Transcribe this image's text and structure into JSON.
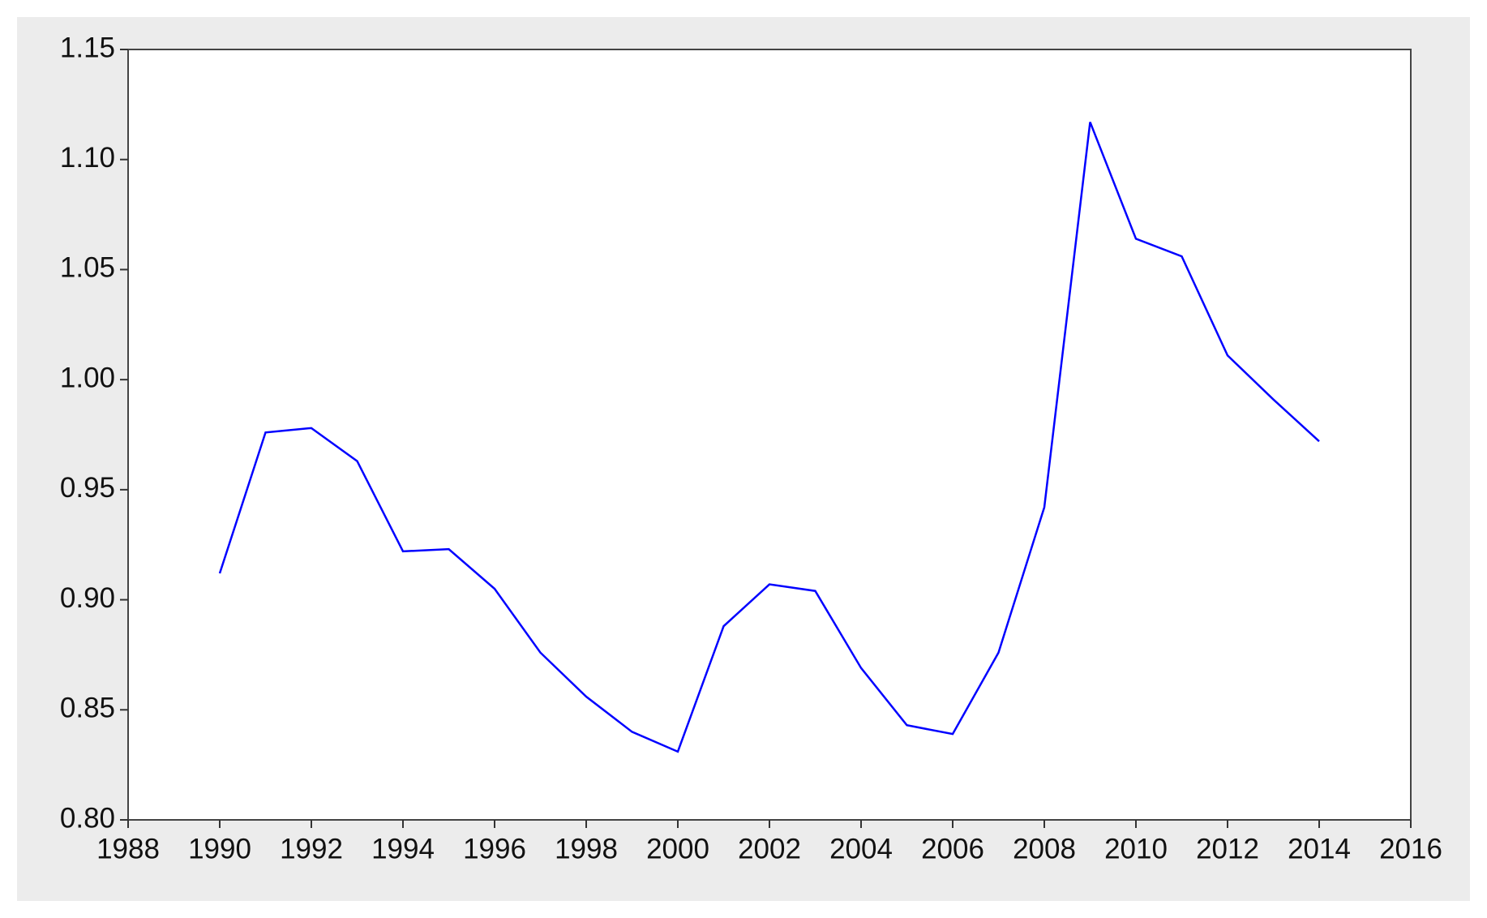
{
  "chart_data": {
    "type": "line",
    "x": [
      1990,
      1991,
      1992,
      1993,
      1994,
      1995,
      1996,
      1997,
      1998,
      1999,
      2000,
      2001,
      2002,
      2003,
      2004,
      2005,
      2006,
      2007,
      2008,
      2009,
      2010,
      2011,
      2012,
      2013,
      2014
    ],
    "series": [
      {
        "color": "#0000ff",
        "values": [
          0.912,
          0.976,
          0.978,
          0.963,
          0.922,
          0.923,
          0.905,
          0.876,
          0.856,
          0.84,
          0.831,
          0.888,
          0.907,
          0.904,
          0.869,
          0.843,
          0.839,
          0.876,
          0.942,
          1.117,
          1.064,
          1.056,
          1.011,
          0.991,
          0.972
        ]
      }
    ],
    "xlim": [
      1988,
      2016
    ],
    "xticks": [
      1988,
      1990,
      1992,
      1994,
      1996,
      1998,
      2000,
      2002,
      2004,
      2006,
      2008,
      2010,
      2012,
      2014,
      2016
    ],
    "ylim": [
      0.8,
      1.15
    ],
    "yticks": [
      {
        "value": 0.8,
        "label": "0.80"
      },
      {
        "value": 0.85,
        "label": "0.85"
      },
      {
        "value": 0.9,
        "label": "0.90"
      },
      {
        "value": 0.95,
        "label": "0.95"
      },
      {
        "value": 1.0,
        "label": "1.00"
      },
      {
        "value": 1.05,
        "label": "1.05"
      },
      {
        "value": 1.1,
        "label": "1.10"
      },
      {
        "value": 1.15,
        "label": "1.15"
      }
    ],
    "grid": false
  }
}
